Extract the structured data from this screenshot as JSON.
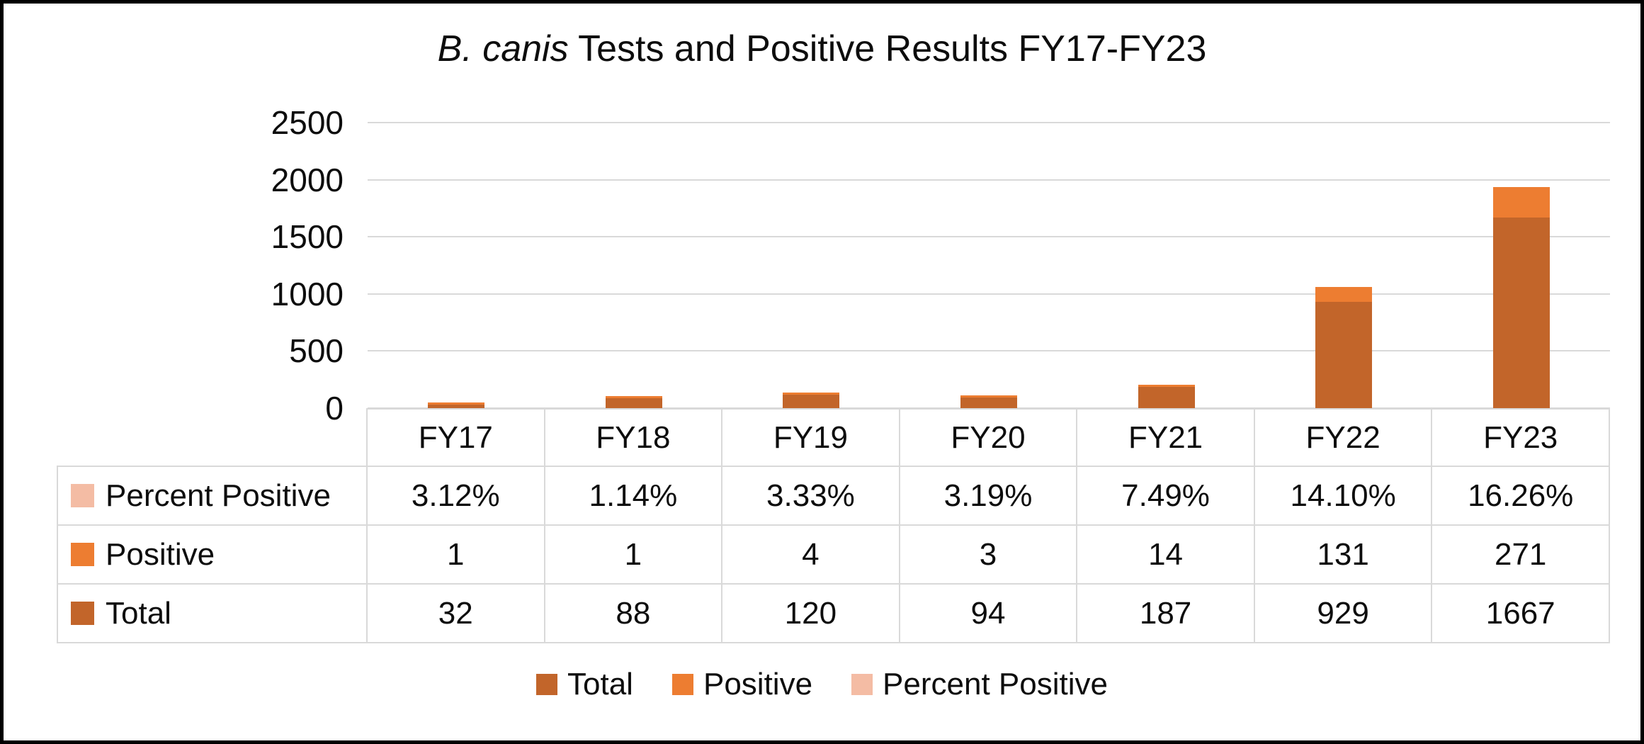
{
  "title": {
    "italic": "B. canis",
    "rest": " Tests and Positive Results FY17-FY23"
  },
  "chart_data": {
    "type": "bar",
    "stacked": true,
    "title": "B. canis Tests and Positive Results FY17-FY23",
    "categories": [
      "FY17",
      "FY18",
      "FY19",
      "FY20",
      "FY21",
      "FY22",
      "FY23"
    ],
    "series": [
      {
        "name": "Total",
        "color": "#C2652A",
        "plotted": true,
        "values": [
          32,
          88,
          120,
          94,
          187,
          929,
          1667
        ]
      },
      {
        "name": "Positive",
        "color": "#ED7D31",
        "plotted": true,
        "values": [
          1,
          1,
          4,
          3,
          14,
          131,
          271
        ]
      },
      {
        "name": "Percent Positive",
        "color": "#F4BCA4",
        "plotted": false,
        "values": [
          "3.12%",
          "1.14%",
          "3.33%",
          "3.19%",
          "7.49%",
          "14.10%",
          "16.26%"
        ]
      }
    ],
    "ylim": [
      0,
      2500
    ],
    "yticks": [
      0,
      500,
      1000,
      1500,
      2000,
      2500
    ],
    "grid": true,
    "gridline_color": "#D9D9D9",
    "data_table_shown": true,
    "table_row_order": [
      "Percent Positive",
      "Positive",
      "Total"
    ],
    "legend_position": "bottom",
    "legend_order": [
      "Total",
      "Positive",
      "Percent Positive"
    ]
  }
}
